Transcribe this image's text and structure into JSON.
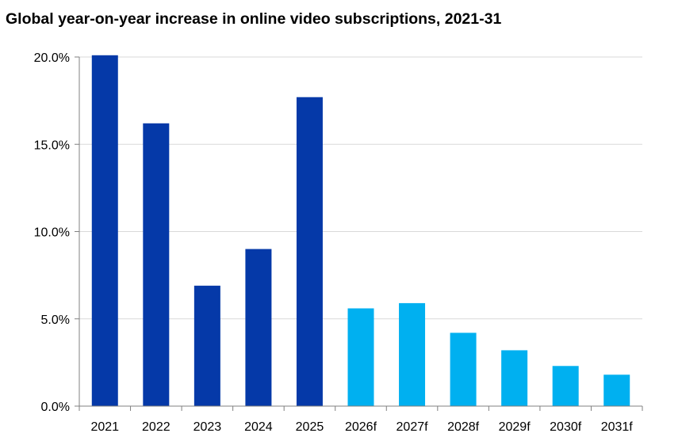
{
  "chart_data": {
    "type": "bar",
    "title": "Global year-on-year increase in online video subscriptions, 2021-31",
    "xlabel": "",
    "ylabel": "",
    "categories": [
      "2021",
      "2022",
      "2023",
      "2024",
      "2025",
      "2026f",
      "2027f",
      "2028f",
      "2029f",
      "2030f",
      "2031f"
    ],
    "values": [
      20.1,
      16.2,
      6.9,
      9.0,
      17.7,
      5.6,
      5.9,
      4.2,
      3.2,
      2.3,
      1.8
    ],
    "forecast": [
      false,
      false,
      false,
      false,
      false,
      true,
      true,
      true,
      true,
      true,
      true
    ],
    "ylim": [
      0,
      20
    ],
    "yticks": [
      0,
      5,
      10,
      15,
      20
    ],
    "ytick_labels": [
      "0.0%",
      "5.0%",
      "10.0%",
      "15.0%",
      "20.0%"
    ],
    "grid": true,
    "legend": "none",
    "colors": {
      "actual": "#0539A8",
      "forecast": "#00B0F0",
      "grid": "#D9D9D9",
      "axis": "#808080"
    }
  }
}
